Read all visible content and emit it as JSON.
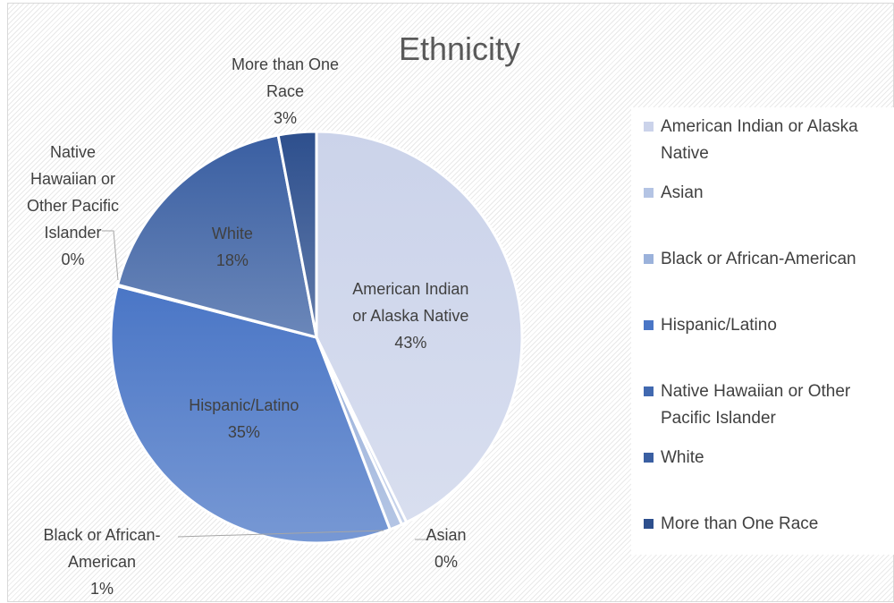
{
  "chart_data": {
    "type": "pie",
    "title": "Ethnicity",
    "categories": [
      "American Indian or Alaska Native",
      "Asian",
      "Black or African-American",
      "Hispanic/Latino",
      "Native Hawaiian or Other Pacific Islander",
      "White",
      "More than One Race"
    ],
    "values": [
      43,
      0.4,
      1,
      35,
      0.1,
      18,
      3
    ],
    "data_labels": [
      {
        "name": "American Indian\nor Alaska Native",
        "percent": "43%"
      },
      {
        "name": "Asian",
        "percent": "0%"
      },
      {
        "name": "Black or African-\nAmerican",
        "percent": "1%"
      },
      {
        "name": "Hispanic/Latino",
        "percent": "35%"
      },
      {
        "name": "Native\nHawaiian or\nOther Pacific\nIslander",
        "percent": "0%"
      },
      {
        "name": "White",
        "percent": "18%"
      },
      {
        "name": "More than One\nRace",
        "percent": "3%"
      }
    ],
    "colors": [
      "#cbd3ea",
      "#b4c4e4",
      "#9bb2db",
      "#4a76c6",
      "#4169b0",
      "#3a5fa2",
      "#2d4f8d"
    ],
    "legend_position": "right"
  }
}
